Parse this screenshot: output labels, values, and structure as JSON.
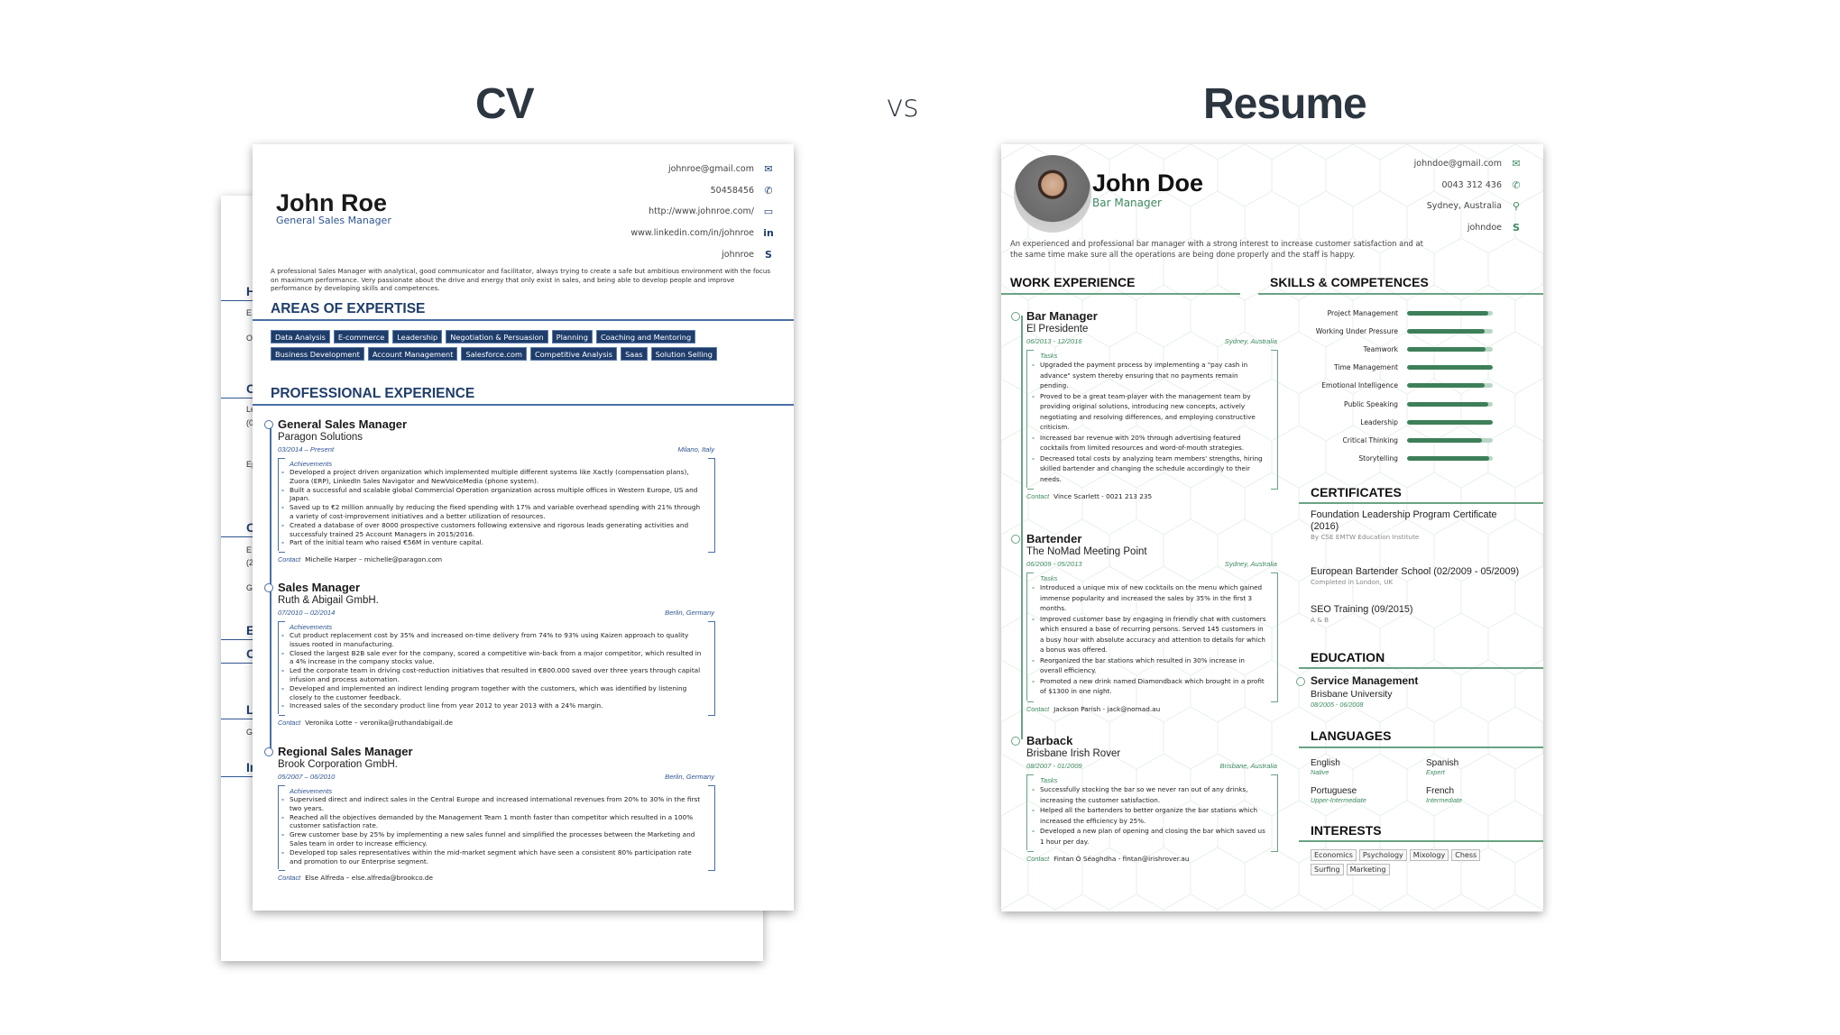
{
  "titles": {
    "left": "CV",
    "middle": "vs",
    "right": "Resume"
  },
  "back_page": {
    "fragments": [
      "H",
      "E",
      "O",
      "C",
      "Le",
      "(0",
      "Ep",
      "O",
      "E",
      "(2",
      "G",
      "E",
      "O",
      "L",
      "Ge",
      "In"
    ]
  },
  "cv": {
    "name": "John Roe",
    "role": "General Sales Manager",
    "contacts": [
      {
        "text": "johnroe@gmail.com",
        "icon": "email-icon",
        "glyph": "✉"
      },
      {
        "text": "50458456",
        "icon": "phone-icon",
        "glyph": "✆"
      },
      {
        "text": "http://www.johnroe.com/",
        "icon": "monitor-icon",
        "glyph": "▭"
      },
      {
        "text": "www.linkedin.com/in/johnroe",
        "icon": "linkedin-icon",
        "glyph": "in"
      },
      {
        "text": "johnroe",
        "icon": "skype-icon",
        "glyph": "S"
      }
    ],
    "summary": "A professional Sales Manager with analytical, good communicator and facilitator, always trying to create a safe but ambitious environment with the focus on maximum performance. Very passionate about the drive and energy that only exist in sales, and being able to develop people and improve performance by developing skills and competences.",
    "expertise_heading": "AREAS OF EXPERTISE",
    "expertise": [
      "Data Analysis",
      "E-commerce",
      "Leadership",
      "Negotiation & Persuasion",
      "Planning",
      "Coaching and Mentoring",
      "Business Development",
      "Account Management",
      "Salesforce.com",
      "Competitive Analysis",
      "Saas",
      "Solution Selling"
    ],
    "experience_heading": "PROFESSIONAL EXPERIENCE",
    "jobs": [
      {
        "title": "General Sales Manager",
        "company": "Paragon Solutions",
        "dates": "03/2014 – Present",
        "location": "Milano, Italy",
        "list_label": "Achievements",
        "items": [
          "Developed a project driven organization which implemented multiple different systems like Xactly (compensation plans), Zuora (ERP), LinkedIn Sales Navigator and NewVoiceMedia (phone system).",
          "Built a successful and scalable global Commercial Operation organization across multiple offices in Western Europe, US and Japan.",
          "Saved up to €2 million annually by reducing the fixed spending with 17% and variable overhead spending with 21% through a variety of cost-improvement initiatives and a better utilization of resources.",
          "Created a database of over 8000 prospective customers following extensive and rigorous leads generating activities and successfuly trained 25 Account Managers in 2015/2016.",
          "Part of the initial team who raised €56M in venture capital."
        ],
        "contact_label": "Contact",
        "contact": "Michelle Harper – michelle@paragon.com"
      },
      {
        "title": "Sales Manager",
        "company": "Ruth & Abigail GmbH.",
        "dates": "07/2010 – 02/2014",
        "location": "Berlin, Germany",
        "list_label": "Achievements",
        "items": [
          "Cut product replacement cost by 35% and increased on-time delivery from 74% to 93% using Kaizen approach to quality issues rooted in manufacturing.",
          "Closed the largest B2B sale ever for the company, scored a competitive win-back from a major competitor, which resulted in a 4% increase in the company stocks value.",
          "Led the corporate team in driving cost-reduction initiatives that resulted in €800.000 saved over three years through capital infusion and process automation.",
          "Developed and implemented an indirect lending program together with the customers, which was identified by listening closely to the customer feedback.",
          "Increased sales of the secondary product line from year 2012 to year 2013 with a 24% margin."
        ],
        "contact_label": "Contact",
        "contact": "Veronika Lotte – veronika@ruthandabigail.de"
      },
      {
        "title": "Regional Sales Manager",
        "company": "Brook Corporation GmbH.",
        "dates": "05/2007 – 06/2010",
        "location": "Berlin, Germany",
        "list_label": "Achievements",
        "items": [
          "Supervised direct and indirect sales in the Central Europe and increased international revenues from 20% to 30% in the first two years.",
          "Reached all the objectives demanded by the Management Team 1 month faster than competitor which resulted in a 100% customer satisfaction rate.",
          "Grew customer base by 25% by implementing a new sales funnel and simplified the processes between the Marketing and Sales team in order to increase efficiency.",
          "Developed top sales representatives within the mid-market segment which have seen a consistent 80% participation rate and promotion to our Enterprise segment."
        ],
        "contact_label": "Contact",
        "contact": "Else Alfreda – else.alfreda@brookco.de"
      }
    ]
  },
  "resume": {
    "name": "John Doe",
    "role": "Bar Manager",
    "accent": "#3d8a5e",
    "contacts": [
      {
        "text": "johndoe@gmail.com",
        "icon": "email-icon",
        "glyph": "✉"
      },
      {
        "text": "0043 312 436",
        "icon": "phone-icon",
        "glyph": "✆"
      },
      {
        "text": "Sydney, Australia",
        "icon": "location-pin-icon",
        "glyph": "⚲"
      },
      {
        "text": "johndoe",
        "icon": "skype-icon",
        "glyph": "S"
      }
    ],
    "summary": "An experienced and professional bar manager with a strong interest to increase customer satisfaction and at the same time make sure all the operations are being done properly and the staff is happy.",
    "work_heading": "WORK EXPERIENCE",
    "jobs": [
      {
        "title": "Bar Manager",
        "company": "El Presidente",
        "dates": "06/2013 - 12/2016",
        "location": "Sydney, Australia",
        "list_label": "Tasks",
        "items": [
          "Upgraded the payment process by implementing a \"pay cash in advance\" system thereby ensuring that no payments remain pending.",
          "Proved to be a great team-player with the management team by providing original solutions, introducing new concepts, actively negotiating and resolving differences, and employing constructive criticism.",
          "Increased bar revenue with 20% through advertising featured cocktails from limited resources and word-of-mouth strategies.",
          "Decreased total costs by analyzing team members' strengths, hiring skilled bartender and changing the schedule accordingly to their needs."
        ],
        "contact_label": "Contact",
        "contact": "Vince Scarlett - 0021 213 235"
      },
      {
        "title": "Bartender",
        "company": "The NoMad Meeting Point",
        "dates": "06/2009 - 05/2013",
        "location": "Sydney, Australia",
        "list_label": "Tasks",
        "items": [
          "Introduced a unique mix of new cocktails on the menu which gained immense popularity and increased the sales by 35% in the first 3 months.",
          "Improved customer base by engaging in friendly chat with customers which ensured a base of recurring persons. Served 145 customers in a busy hour with absolute accuracy and attention to details for which a bonus was offered.",
          "Reorganized the bar stations which resulted in 30% increase in overall efficiency.",
          "Promoted a new drink named Diamondback which brought in a profit of $1300 in one night."
        ],
        "contact_label": "Contact",
        "contact": "Jackson Parish - jack@nomad.au"
      },
      {
        "title": "Barback",
        "company": "Brisbane Irish Rover",
        "dates": "08/2007 - 01/2009",
        "location": "Brisbane, Australia",
        "list_label": "Tasks",
        "items": [
          "Successfully stocking the bar so we never ran out of any drinks, increasing the customer satisfaction.",
          "Helped all the bartenders to better organize the bar stations which increased the efficiency by 25%.",
          "Developed a new plan of opening and closing the bar which saved us 1 hour per day."
        ],
        "contact_label": "Contact",
        "contact": "Fintan Ó Séaghdha - fintan@irishrover.au"
      }
    ],
    "skills_heading": "SKILLS & COMPETENCES",
    "skills": [
      {
        "name": "Project Management",
        "level_percent": 95
      },
      {
        "name": "Working Under Pressure",
        "level_percent": 91
      },
      {
        "name": "Teamwork",
        "level_percent": 92
      },
      {
        "name": "Time Management",
        "level_percent": 100
      },
      {
        "name": "Emotional Intelligence",
        "level_percent": 91
      },
      {
        "name": "Public Speaking",
        "level_percent": 95
      },
      {
        "name": "Leadership",
        "level_percent": 100
      },
      {
        "name": "Critical Thinking",
        "level_percent": 87
      },
      {
        "name": "Storytelling",
        "level_percent": 96
      }
    ],
    "certificates_heading": "CERTIFICATES",
    "certificates": [
      {
        "title": "Foundation Leadership Program Certificate (2016)",
        "sub": "By CSE EMTW Education Institute"
      },
      {
        "title": "European Bartender School (02/2009 - 05/2009)",
        "sub": "Completed in London, UK"
      },
      {
        "title": "SEO Training (09/2015)",
        "sub": "A & B"
      }
    ],
    "education_heading": "EDUCATION",
    "education": {
      "title": "Service Management",
      "school": "Brisbane University",
      "dates": "08/2005 - 06/2008"
    },
    "languages_heading": "LANGUAGES",
    "languages": [
      {
        "name": "English",
        "level": "Native"
      },
      {
        "name": "Spanish",
        "level": "Expert"
      },
      {
        "name": "Portuguese",
        "level": "Upper-Intermediate"
      },
      {
        "name": "French",
        "level": "Intermediate"
      }
    ],
    "interests_heading": "INTERESTS",
    "interests": [
      "Economics",
      "Psychology",
      "Mixology",
      "Chess",
      "Surfing",
      "Marketing"
    ]
  }
}
